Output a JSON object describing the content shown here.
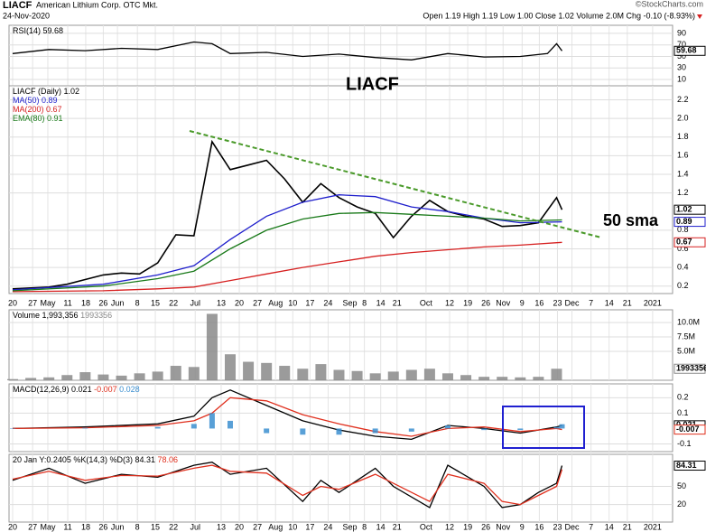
{
  "header": {
    "symbol": "LIACF",
    "name": "American Lithium Corp. OTC Mkt.",
    "date": "24-Nov-2020",
    "source": "©StockCharts.com",
    "quote": "Open 1.19 High 1.19 Low 1.00 Close 1.02 Volume 2.0M Chg -0.10 (-8.93%)"
  },
  "chart_data": [
    {
      "type": "line",
      "xlim": [
        -0.2,
        36.4
      ],
      "ylim": [
        -1,
        104
      ],
      "yticks": [
        90,
        70,
        50,
        30,
        10
      ],
      "series": [
        {
          "name": "RSI(14)",
          "color": "#000000",
          "right_label": true,
          "x": [
            0,
            2,
            4,
            6,
            8,
            10,
            11,
            12,
            14,
            16,
            18,
            20,
            22,
            24,
            26,
            28,
            29.5,
            30,
            30.3
          ],
          "values": [
            55,
            62,
            60,
            64,
            62,
            75,
            72,
            55,
            57,
            50,
            54,
            48,
            44,
            55,
            49,
            50,
            55,
            72,
            59.68
          ]
        }
      ]
    },
    {
      "type": "line",
      "xlim": [
        -0.2,
        36.4
      ],
      "ylim": [
        0.12,
        2.35
      ],
      "yticks": [
        2.2,
        {
          "value": 2,
          "label": "2.0"
        },
        1.8,
        1.6,
        1.4,
        1.2,
        0.8,
        0.6,
        0.4,
        0.2
      ],
      "xticks": [
        {
          "value": 0,
          "label": "20"
        },
        {
          "value": 1.1,
          "label": "27"
        },
        {
          "value": 1.94,
          "label": "May"
        },
        {
          "value": 3.04,
          "label": "11"
        },
        {
          "value": 4.03,
          "label": "18"
        },
        {
          "value": 5,
          "label": "26"
        },
        {
          "value": 5.78,
          "label": "Jun"
        },
        {
          "value": 6.88,
          "label": "8"
        },
        {
          "value": 7.87,
          "label": "15"
        },
        {
          "value": 8.87,
          "label": "22"
        },
        {
          "value": 10.07,
          "label": "Jul"
        },
        {
          "value": 11.5,
          "label": "13"
        },
        {
          "value": 12.5,
          "label": "20"
        },
        {
          "value": 13.5,
          "label": "27"
        },
        {
          "value": 14.5,
          "label": "Aug"
        },
        {
          "value": 15.45,
          "label": "10"
        },
        {
          "value": 16.4,
          "label": "17"
        },
        {
          "value": 17.4,
          "label": "24"
        },
        {
          "value": 18.6,
          "label": "Sep"
        },
        {
          "value": 19.4,
          "label": "8"
        },
        {
          "value": 20.3,
          "label": "14"
        },
        {
          "value": 21.2,
          "label": "21"
        },
        {
          "value": 22.8,
          "label": "Oct"
        },
        {
          "value": 24.1,
          "label": "12"
        },
        {
          "value": 25.1,
          "label": "19"
        },
        {
          "value": 26.1,
          "label": "26"
        },
        {
          "value": 27.05,
          "label": "Nov"
        },
        {
          "value": 28.1,
          "label": "9"
        },
        {
          "value": 29.05,
          "label": "16"
        },
        {
          "value": 30.05,
          "label": "23"
        },
        {
          "value": 30.85,
          "label": "Dec"
        },
        {
          "value": 31.9,
          "label": "7"
        },
        {
          "value": 32.9,
          "label": "14"
        },
        {
          "value": 33.9,
          "label": "21"
        },
        {
          "value": 35.3,
          "label": "2021"
        }
      ],
      "annotations": [
        "LIACF",
        "50 sma"
      ],
      "series": [
        {
          "name": "LIACF (Daily)",
          "color": "#000000",
          "right_label": true,
          "x": [
            0,
            1,
            2,
            3,
            4,
            5,
            6,
            7,
            8,
            9,
            10,
            11,
            12,
            13,
            14,
            15,
            16,
            17,
            18,
            19,
            20,
            21,
            22,
            23,
            24,
            25,
            26,
            27,
            28,
            29,
            30,
            30.3
          ],
          "values": [
            0.17,
            0.18,
            0.19,
            0.22,
            0.27,
            0.32,
            0.34,
            0.33,
            0.45,
            0.75,
            0.74,
            1.75,
            1.45,
            1.5,
            1.55,
            1.35,
            1.1,
            1.3,
            1.15,
            1.05,
            0.98,
            0.72,
            0.95,
            1.12,
            1.0,
            0.95,
            0.92,
            0.84,
            0.85,
            0.88,
            1.15,
            1.02
          ]
        },
        {
          "name": "MA(50)",
          "color": "#1f1fcc",
          "right_label": true,
          "x": [
            0,
            5,
            8,
            10,
            12,
            14,
            16,
            18,
            20,
            22,
            24,
            26,
            28,
            30.3
          ],
          "values": [
            0.16,
            0.22,
            0.32,
            0.42,
            0.7,
            0.95,
            1.1,
            1.18,
            1.16,
            1.05,
            1.0,
            0.93,
            0.88,
            0.89
          ]
        },
        {
          "name": "MA(200)",
          "color": "#d62020",
          "right_label": true,
          "x": [
            0,
            5,
            8,
            10,
            12,
            14,
            16,
            18,
            20,
            22,
            24,
            26,
            28,
            30.3
          ],
          "values": [
            0.14,
            0.15,
            0.17,
            0.19,
            0.26,
            0.33,
            0.4,
            0.46,
            0.52,
            0.56,
            0.59,
            0.62,
            0.64,
            0.67
          ]
        },
        {
          "name": "EMA(80)",
          "color": "#1a7a1a",
          "x": [
            0,
            5,
            8,
            10,
            12,
            14,
            16,
            18,
            20,
            22,
            24,
            26,
            28,
            30.3
          ],
          "values": [
            0.15,
            0.2,
            0.28,
            0.36,
            0.6,
            0.8,
            0.92,
            0.98,
            0.99,
            0.97,
            0.95,
            0.93,
            0.9,
            0.91
          ]
        }
      ]
    },
    {
      "type": "bar",
      "title": "Volume 1,993,356",
      "xlim": [
        -0.2,
        36.4
      ],
      "ylim": [
        0,
        12200000
      ],
      "yticks": [
        {
          "value": 10000000,
          "label": "10.0M"
        },
        {
          "value": 7500000,
          "label": "7.5M"
        },
        {
          "value": 5000000,
          "label": "5.0M"
        }
      ],
      "series": [
        {
          "color": "#8a8a8a",
          "right_label": true,
          "x": [
            0,
            1,
            2,
            3,
            4,
            5,
            6,
            7,
            8,
            9,
            10,
            11,
            12,
            13,
            14,
            15,
            16,
            17,
            18,
            19,
            20,
            21,
            22,
            23,
            24,
            25,
            26,
            27,
            28,
            29,
            30
          ],
          "values": [
            200000,
            400000,
            500000,
            900000,
            1400000,
            1000000,
            800000,
            1200000,
            1500000,
            2500000,
            2300000,
            11500000,
            4500000,
            3200000,
            3000000,
            2500000,
            2000000,
            2800000,
            1800000,
            1600000,
            1200000,
            1500000,
            1800000,
            2000000,
            1200000,
            900000,
            600000,
            600000,
            500000,
            600000,
            1993356
          ]
        }
      ]
    },
    {
      "type": "line",
      "title": "MACD(12,26,9)",
      "xlim": [
        -0.2,
        36.4
      ],
      "ylim": [
        -0.15,
        0.29
      ],
      "yticks": [
        0.2,
        0.1,
        -0.1
      ],
      "series": [
        {
          "color": "#000000",
          "right_label": true,
          "x": [
            0,
            4,
            8,
            10,
            11,
            12,
            14,
            16,
            18,
            20,
            22,
            24,
            26,
            28,
            30,
            30.3
          ],
          "values": [
            0,
            0.01,
            0.03,
            0.08,
            0.2,
            0.25,
            0.15,
            0.05,
            -0.01,
            -0.05,
            -0.07,
            0.02,
            0,
            -0.03,
            0.01,
            0.021
          ]
        },
        {
          "color": "#e0301e",
          "right_label": true,
          "x": [
            0,
            4,
            8,
            10,
            11,
            12,
            14,
            16,
            18,
            20,
            22,
            24,
            26,
            28,
            30,
            30.3
          ],
          "values": [
            0,
            0.005,
            0.02,
            0.05,
            0.1,
            0.2,
            0.18,
            0.09,
            0.03,
            -0.02,
            -0.05,
            0,
            0.01,
            -0.02,
            0,
            -0.007
          ]
        },
        {
          "type": "bar",
          "color": "#3c8fd0",
          "x": [
            0,
            4,
            8,
            10,
            11,
            12,
            14,
            16,
            18,
            20,
            22,
            24,
            26,
            28,
            30,
            30.3
          ],
          "values": [
            0,
            0.005,
            0.01,
            0.03,
            0.1,
            0.05,
            -0.03,
            -0.04,
            -0.04,
            -0.03,
            -0.02,
            0.02,
            -0.01,
            -0.01,
            0.01,
            0.028
          ]
        }
      ]
    },
    {
      "type": "line",
      "annotation": "20 Jan Y:0.2405",
      "title": "%K(14,3) %D(3)",
      "xlim": [
        -0.2,
        36.4
      ],
      "ylim": [
        -9,
        103
      ],
      "yticks": [
        50,
        20
      ],
      "series": [
        {
          "color": "#000000",
          "right_label": true,
          "x": [
            0,
            2,
            4,
            6,
            8,
            10,
            11,
            12,
            14,
            16,
            17,
            18,
            20,
            21,
            23,
            24,
            26,
            27,
            28,
            29,
            30,
            30.3
          ],
          "values": [
            60,
            80,
            55,
            70,
            65,
            85,
            90,
            70,
            80,
            25,
            60,
            40,
            80,
            50,
            15,
            85,
            50,
            15,
            20,
            40,
            55,
            84.31
          ]
        },
        {
          "color": "#e0301e",
          "x": [
            0,
            2,
            4,
            6,
            8,
            10,
            11,
            12,
            14,
            16,
            17,
            18,
            20,
            21,
            23,
            24,
            26,
            27,
            28,
            29,
            30,
            30.3
          ],
          "values": [
            62,
            75,
            60,
            68,
            67,
            80,
            85,
            75,
            72,
            35,
            50,
            45,
            70,
            55,
            25,
            70,
            55,
            25,
            20,
            35,
            50,
            78.06
          ]
        }
      ]
    }
  ]
}
